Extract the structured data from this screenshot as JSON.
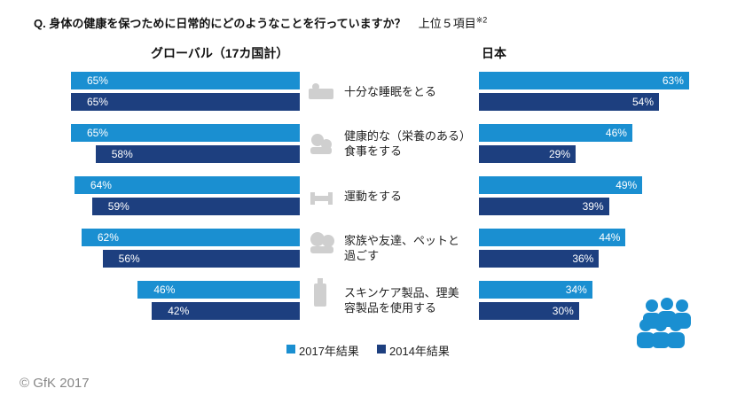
{
  "title": "Q. 身体の健康を保つために日常的にどのようなことを行っていますか？",
  "subtitle": "上位５項目",
  "note": "※2",
  "footer": "© GfK 2017",
  "chart_data": [
    {
      "type": "bar",
      "orientation": "horizontal",
      "direction": "left",
      "title": "グローバル（17カ国計）",
      "categories": [
        "十分な睡眠をとる",
        "健康的な（栄養のある）食事をする",
        "運動をする",
        "家族や友達、ペットと過ごす",
        "スキンケア製品、理美容製品を使用する"
      ],
      "series": [
        {
          "name": "2017年結果",
          "color": "#1a8fd1",
          "values": [
            65,
            65,
            64,
            62,
            46
          ],
          "value_labels": [
            "65%",
            "65%",
            "64%",
            "62%",
            "46%"
          ]
        },
        {
          "name": "2014年結果",
          "color": "#1d3f7f",
          "values": [
            65,
            58,
            59,
            56,
            42
          ],
          "value_labels": [
            "65%",
            "58%",
            "59%",
            "56%",
            "42%"
          ]
        }
      ]
    },
    {
      "type": "bar",
      "orientation": "horizontal",
      "direction": "right",
      "title": "日本",
      "series": [
        {
          "color": "#1a8fd1",
          "values": [
            63,
            46,
            49,
            44,
            34
          ],
          "value_labels": [
            "63%",
            "46%",
            "49%",
            "44%",
            "34%"
          ]
        },
        {
          "color": "#1d3f7f",
          "values": [
            54,
            29,
            39,
            36,
            30
          ],
          "value_labels": [
            "54%",
            "29%",
            "39%",
            "36%",
            "30%"
          ]
        }
      ]
    }
  ]
}
